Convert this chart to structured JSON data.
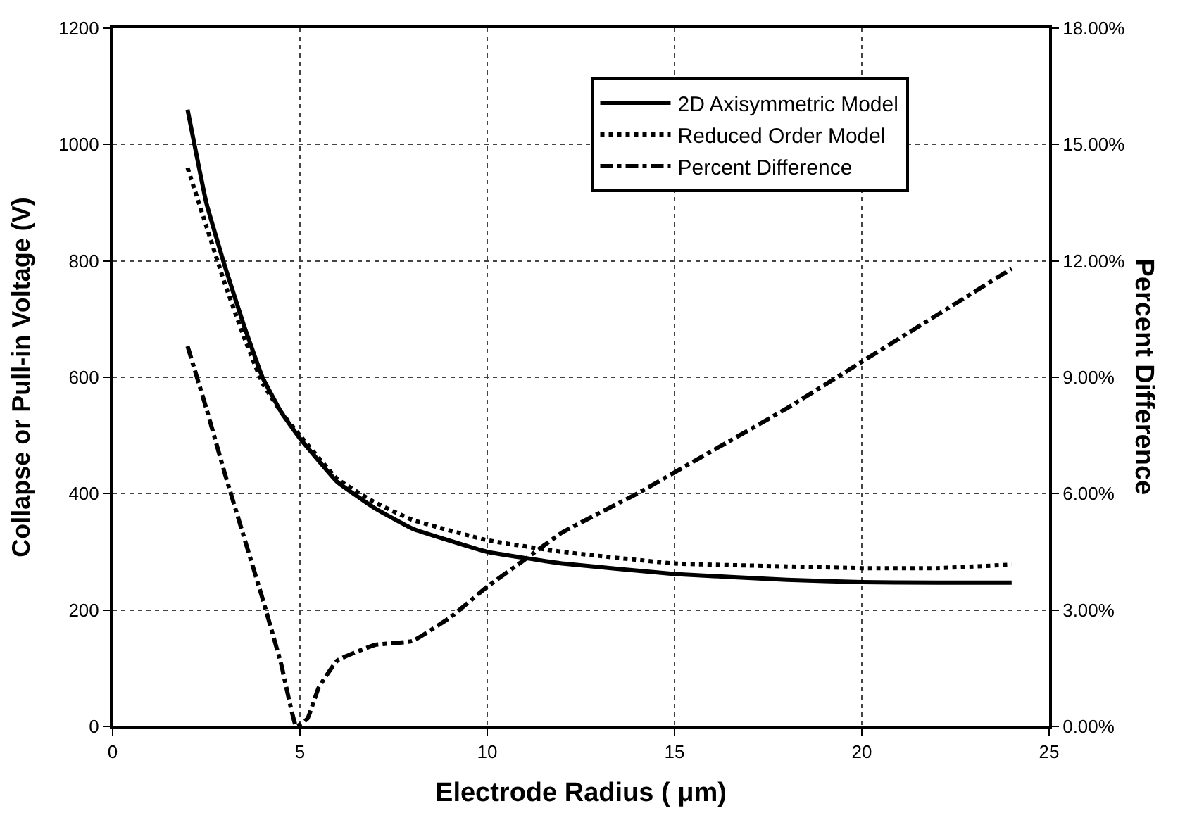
{
  "chart_data": {
    "type": "line",
    "xlabel": "Electrode Radius ( μm)",
    "ylabel": "Collapse or Pull-in Voltage (V)",
    "y2label": "Percent Difference",
    "xlim": [
      0,
      25
    ],
    "xticks": [
      0,
      5,
      10,
      15,
      20,
      25
    ],
    "ylim": [
      0,
      1200
    ],
    "yticks": [
      0,
      200,
      400,
      600,
      800,
      1000,
      1200
    ],
    "y2lim": [
      0,
      18
    ],
    "y2ticks": [
      {
        "value": 0,
        "label": "0.00%"
      },
      {
        "value": 3,
        "label": "3.00%"
      },
      {
        "value": 6,
        "label": "6.00%"
      },
      {
        "value": 9,
        "label": "9.00%"
      },
      {
        "value": 12,
        "label": "12.00%"
      },
      {
        "value": 15,
        "label": "15.00%"
      },
      {
        "value": 18,
        "label": "18.00%"
      }
    ],
    "grid": true,
    "legend": "top right",
    "marker": "none",
    "series": [
      {
        "name": "2D Axisymmetric Model",
        "color": "#000000",
        "line_style": "solid",
        "x": [
          2,
          2.5,
          3,
          3.5,
          4,
          4.5,
          5,
          6,
          7,
          8,
          10,
          12,
          15,
          18,
          20,
          22,
          24
        ],
        "values": [
          1060,
          900,
          790,
          690,
          600,
          540,
          495,
          420,
          375,
          340,
          300,
          280,
          262,
          252,
          248,
          247,
          247
        ]
      },
      {
        "name": "Reduced Order Model",
        "color": "#000000",
        "line_style": "dotted",
        "x": [
          2,
          2.5,
          3,
          3.5,
          4,
          4.5,
          5,
          6,
          7,
          8,
          10,
          12,
          15,
          18,
          20,
          22,
          24
        ],
        "values": [
          960,
          860,
          760,
          670,
          590,
          540,
          500,
          425,
          385,
          355,
          320,
          300,
          280,
          275,
          272,
          272,
          278
        ]
      },
      {
        "name": "Percent Difference",
        "color": "#000000",
        "line_style": "dashdot",
        "axis": "y2",
        "x": [
          2,
          2.5,
          3,
          3.5,
          4,
          4.5,
          4.9,
          5.2,
          5.5,
          6,
          7,
          8,
          9,
          10,
          11,
          12,
          14,
          16,
          18,
          20,
          22,
          24
        ],
        "values": [
          9.8,
          8.2,
          6.5,
          4.9,
          3.3,
          1.6,
          0,
          0.2,
          1.0,
          1.7,
          2.1,
          2.2,
          2.8,
          3.6,
          4.3,
          5.0,
          6.0,
          7.1,
          8.2,
          9.4,
          10.6,
          11.8
        ]
      }
    ]
  }
}
